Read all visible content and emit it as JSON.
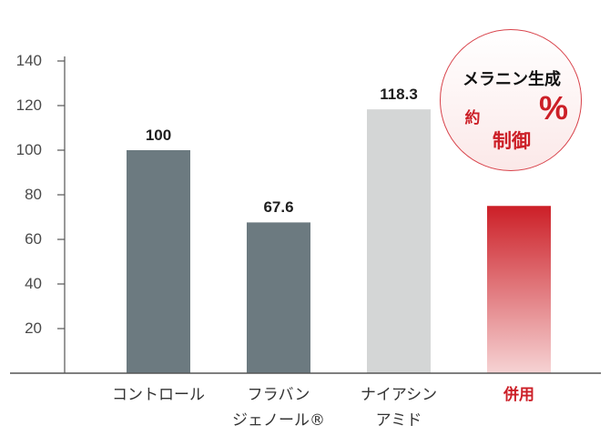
{
  "chart_data": {
    "type": "bar",
    "categories": [
      "コントロール",
      "フラバン\nジェノール®",
      "ナイアシン\nアミド",
      "併用"
    ],
    "values": [
      100,
      67.6,
      118.3,
      75
    ],
    "data_labels": [
      "100",
      "67.6",
      "118.3",
      null
    ],
    "ylim": [
      0,
      140
    ],
    "yticks": [
      20,
      40,
      60,
      80,
      100,
      120,
      140
    ],
    "grid": false,
    "highlight_index": 3,
    "bar_colors": [
      "#6c7a80",
      "#6c7a80",
      "#d4d6d6",
      "#cc1f27"
    ],
    "highlight_gradient": [
      "#cc1f27",
      "#f6d3d4"
    ],
    "category_colors": [
      "#333333",
      "#333333",
      "#333333",
      "#cc1f27"
    ],
    "axis_color": "#555555"
  },
  "callout": {
    "title": "メラニン生成",
    "approx": "約",
    "unit": "%",
    "effect": "制御",
    "accent_color": "#cc1f27",
    "border_color": "#d8424a"
  }
}
